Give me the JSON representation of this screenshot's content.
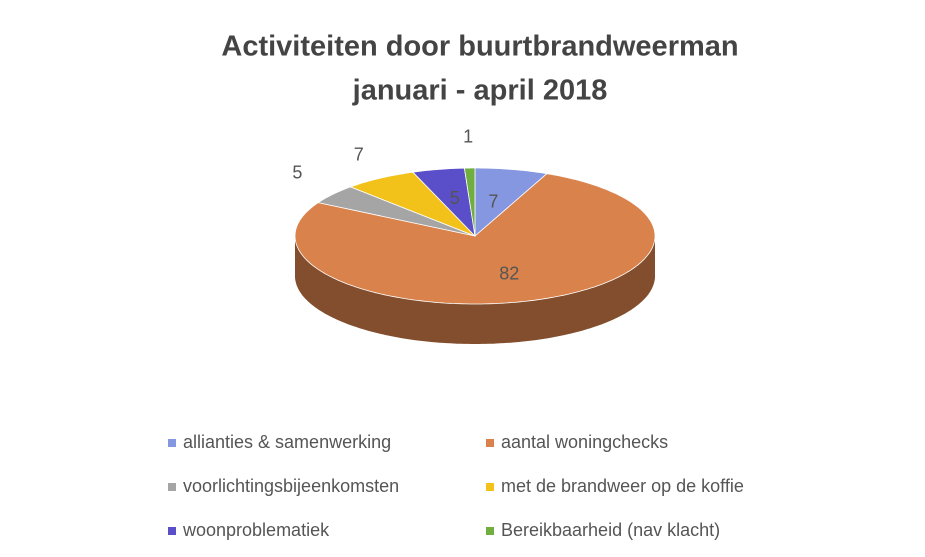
{
  "chart_data": {
    "type": "pie3d",
    "title": "Activiteiten door buurtbrandweerman",
    "subtitle": "januari - april 2018",
    "categories": [
      "allianties & samenwerking",
      "aantal woningchecks",
      "voorlichtingsbijeenkomsten",
      "met de brandweer op de koffie",
      "woonproblematiek",
      "Bereikbaarheid (nav klacht)"
    ],
    "values": [
      7,
      82,
      5,
      7,
      5,
      1
    ],
    "colors": [
      "#8497e0",
      "#d9824b",
      "#a5a5a5",
      "#f2c21b",
      "#5a4fc8",
      "#6fae3f"
    ],
    "legend": "bottom"
  }
}
